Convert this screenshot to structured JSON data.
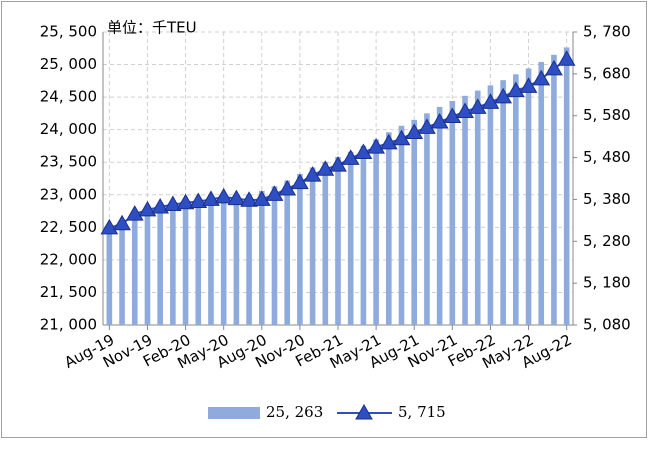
{
  "chart_data": {
    "type": "bar_line",
    "annotation": "单位：千TEU",
    "categories": [
      "Aug-19",
      null,
      null,
      "Nov-19",
      null,
      null,
      "Feb-20",
      null,
      null,
      "May-20",
      null,
      null,
      "Aug-20",
      null,
      null,
      "Nov-20",
      null,
      null,
      "Feb-21",
      null,
      null,
      "May-21",
      null,
      null,
      "Aug-21",
      null,
      null,
      "Nov-21",
      null,
      null,
      "Feb-22",
      null,
      null,
      "May-22",
      null,
      null,
      "Aug-22"
    ],
    "series": [
      {
        "name": "25, 263",
        "type": "bar",
        "color": "#8faadc",
        "values": [
          22480,
          22540,
          22620,
          22700,
          22760,
          22800,
          22830,
          22860,
          22880,
          22920,
          22960,
          23000,
          23060,
          23130,
          23220,
          23320,
          23420,
          23500,
          23580,
          23660,
          23750,
          23850,
          23960,
          24060,
          24150,
          24250,
          24350,
          24440,
          24520,
          24600,
          24680,
          24760,
          24850,
          24940,
          25040,
          25150,
          25263
        ]
      },
      {
        "name": "5, 715",
        "type": "line",
        "axis": "y2",
        "color": "#2e4fc4",
        "values": [
          5312,
          5322,
          5345,
          5355,
          5362,
          5368,
          5372,
          5375,
          5380,
          5386,
          5382,
          5378,
          5380,
          5392,
          5405,
          5420,
          5438,
          5452,
          5462,
          5478,
          5492,
          5505,
          5515,
          5525,
          5540,
          5552,
          5565,
          5578,
          5590,
          5600,
          5612,
          5625,
          5640,
          5650,
          5668,
          5692,
          5715
        ]
      }
    ],
    "ylim": [
      21000,
      25500
    ],
    "yticks": [
      {
        "value": 21000,
        "label": "21, 000"
      },
      {
        "value": 21500,
        "label": "21, 500"
      },
      {
        "value": 22000,
        "label": "22, 000"
      },
      {
        "value": 22500,
        "label": "22, 500"
      },
      {
        "value": 23000,
        "label": "23, 000"
      },
      {
        "value": 23500,
        "label": "23, 500"
      },
      {
        "value": 24000,
        "label": "24, 000"
      },
      {
        "value": 24500,
        "label": "24, 500"
      },
      {
        "value": 25000,
        "label": "25, 000"
      },
      {
        "value": 25500,
        "label": "25, 500"
      }
    ],
    "y2lim": [
      5080,
      5780
    ],
    "y2ticks": [
      {
        "value": 5080,
        "label": "5, 080"
      },
      {
        "value": 5180,
        "label": "5, 180"
      },
      {
        "value": 5280,
        "label": "5, 280"
      },
      {
        "value": 5380,
        "label": "5, 380"
      },
      {
        "value": 5480,
        "label": "5, 480"
      },
      {
        "value": 5580,
        "label": "5, 580"
      },
      {
        "value": 5680,
        "label": "5, 680"
      },
      {
        "value": 5780,
        "label": "5, 780"
      }
    ],
    "grid": true,
    "legend": "bottom"
  }
}
